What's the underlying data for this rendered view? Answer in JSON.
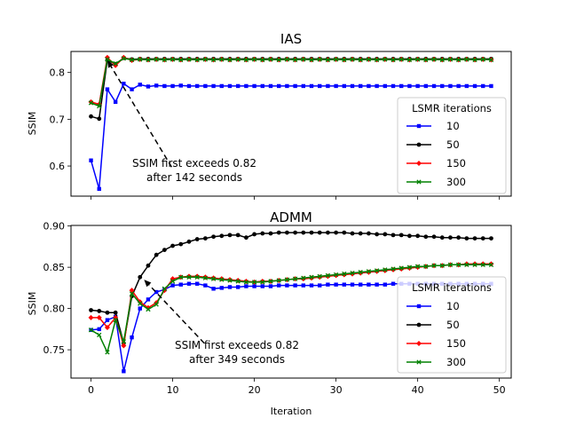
{
  "chart_data": [
    {
      "type": "line",
      "title": "IAS",
      "xlabel": "",
      "ylabel": "SSIM",
      "xlim": [
        -2.45,
        51.45
      ],
      "ylim": [
        0.5356,
        0.8449
      ],
      "x_ticks": [
        0,
        10,
        20,
        30,
        40,
        50
      ],
      "y_ticks": [
        0.6,
        0.7,
        0.8
      ],
      "y_tick_labels": [
        "0.6",
        "0.7",
        "0.8"
      ],
      "x_tick_labels_shown": false,
      "legend": {
        "title": "LSMR iterations",
        "position": "center-right"
      },
      "annotation": {
        "text_lines": [
          "SSIM first exceeds 0.82",
          "after 142 seconds"
        ],
        "arrow_to": [
          2,
          0.826
        ],
        "text_at": [
          14,
          0.575
        ]
      },
      "series": [
        {
          "name": "10",
          "color": "#0000ff",
          "marker": "square",
          "values": [
            0.612,
            0.551,
            0.764,
            0.737,
            0.776,
            0.764,
            0.774,
            0.77,
            0.772,
            0.771,
            0.771,
            0.772,
            0.771,
            0.771,
            0.771,
            0.771,
            0.771,
            0.771,
            0.771,
            0.771,
            0.771,
            0.771,
            0.771,
            0.771,
            0.771,
            0.771,
            0.771,
            0.771,
            0.771,
            0.771,
            0.771,
            0.771,
            0.771,
            0.771,
            0.771,
            0.771,
            0.771,
            0.771,
            0.771,
            0.771,
            0.771,
            0.771,
            0.771,
            0.771,
            0.771,
            0.771,
            0.771,
            0.771,
            0.771,
            0.771
          ]
        },
        {
          "name": "50",
          "color": "#000000",
          "marker": "circle",
          "values": [
            0.706,
            0.701,
            0.826,
            0.818,
            0.831,
            0.828,
            0.829,
            0.829,
            0.829,
            0.829,
            0.829,
            0.829,
            0.829,
            0.829,
            0.829,
            0.829,
            0.829,
            0.829,
            0.829,
            0.829,
            0.829,
            0.829,
            0.829,
            0.829,
            0.829,
            0.829,
            0.829,
            0.829,
            0.829,
            0.829,
            0.829,
            0.829,
            0.829,
            0.829,
            0.829,
            0.829,
            0.829,
            0.829,
            0.829,
            0.829,
            0.829,
            0.829,
            0.829,
            0.829,
            0.829,
            0.829,
            0.829,
            0.829,
            0.829,
            0.829
          ]
        },
        {
          "name": "150",
          "color": "#ff0000",
          "marker": "diamond",
          "values": [
            0.737,
            0.732,
            0.832,
            0.815,
            0.832,
            0.826,
            0.828,
            0.827,
            0.828,
            0.827,
            0.828,
            0.827,
            0.828,
            0.827,
            0.828,
            0.827,
            0.828,
            0.827,
            0.828,
            0.827,
            0.828,
            0.827,
            0.828,
            0.827,
            0.828,
            0.827,
            0.828,
            0.827,
            0.828,
            0.827,
            0.828,
            0.827,
            0.828,
            0.827,
            0.828,
            0.827,
            0.828,
            0.827,
            0.828,
            0.827,
            0.828,
            0.827,
            0.828,
            0.827,
            0.828,
            0.827,
            0.828,
            0.827,
            0.828,
            0.827
          ]
        },
        {
          "name": "300",
          "color": "#008000",
          "marker": "x",
          "values": [
            0.735,
            0.728,
            0.828,
            0.819,
            0.83,
            0.827,
            0.828,
            0.827,
            0.828,
            0.827,
            0.828,
            0.827,
            0.828,
            0.827,
            0.828,
            0.827,
            0.828,
            0.827,
            0.828,
            0.827,
            0.828,
            0.827,
            0.828,
            0.827,
            0.828,
            0.827,
            0.828,
            0.827,
            0.828,
            0.827,
            0.828,
            0.827,
            0.828,
            0.827,
            0.828,
            0.827,
            0.828,
            0.827,
            0.828,
            0.827,
            0.828,
            0.827,
            0.828,
            0.827,
            0.828,
            0.827,
            0.828,
            0.827,
            0.828,
            0.827
          ]
        }
      ]
    },
    {
      "type": "line",
      "title": "ADMM",
      "xlabel": "Iteration",
      "ylabel": "SSIM",
      "xlim": [
        -2.45,
        51.45
      ],
      "ylim": [
        0.7157,
        0.9007
      ],
      "x_ticks": [
        0,
        10,
        20,
        30,
        40,
        50
      ],
      "y_ticks": [
        0.75,
        0.8,
        0.85,
        0.9
      ],
      "y_tick_labels": [
        "0.75",
        "0.80",
        "0.85",
        "0.90"
      ],
      "x_tick_labels_shown": true,
      "legend": {
        "title": "LSMR iterations",
        "position": "center-right"
      },
      "annotation": {
        "text_lines": [
          "SSIM first exceeds 0.82",
          "after 349 seconds"
        ],
        "arrow_to": [
          6.5,
          0.835
        ],
        "text_at": [
          18,
          0.745
        ]
      },
      "series": [
        {
          "name": "10",
          "color": "#0000ff",
          "marker": "square",
          "values": [
            0.774,
            0.775,
            0.786,
            0.79,
            0.724,
            0.765,
            0.8,
            0.811,
            0.82,
            0.823,
            0.828,
            0.829,
            0.83,
            0.83,
            0.828,
            0.824,
            0.825,
            0.826,
            0.826,
            0.827,
            0.827,
            0.827,
            0.827,
            0.828,
            0.828,
            0.828,
            0.828,
            0.828,
            0.828,
            0.829,
            0.829,
            0.829,
            0.829,
            0.829,
            0.829,
            0.829,
            0.829,
            0.83,
            0.83,
            0.83,
            0.83,
            0.83,
            0.83,
            0.83,
            0.83,
            0.83,
            0.83,
            0.83,
            0.83,
            0.83
          ]
        },
        {
          "name": "50",
          "color": "#000000",
          "marker": "circle",
          "values": [
            0.798,
            0.797,
            0.795,
            0.795,
            0.758,
            0.815,
            0.838,
            0.852,
            0.865,
            0.871,
            0.876,
            0.878,
            0.881,
            0.884,
            0.885,
            0.887,
            0.888,
            0.889,
            0.889,
            0.886,
            0.89,
            0.891,
            0.891,
            0.892,
            0.892,
            0.892,
            0.892,
            0.892,
            0.892,
            0.892,
            0.892,
            0.892,
            0.891,
            0.891,
            0.891,
            0.89,
            0.89,
            0.889,
            0.889,
            0.888,
            0.888,
            0.887,
            0.887,
            0.886,
            0.886,
            0.886,
            0.885,
            0.885,
            0.885,
            0.885
          ]
        },
        {
          "name": "150",
          "color": "#ff0000",
          "marker": "diamond",
          "values": [
            0.789,
            0.789,
            0.777,
            0.789,
            0.755,
            0.822,
            0.808,
            0.801,
            0.807,
            0.822,
            0.836,
            0.838,
            0.839,
            0.839,
            0.838,
            0.837,
            0.836,
            0.835,
            0.834,
            0.833,
            0.832,
            0.833,
            0.833,
            0.834,
            0.835,
            0.836,
            0.836,
            0.837,
            0.838,
            0.839,
            0.84,
            0.841,
            0.842,
            0.843,
            0.844,
            0.845,
            0.846,
            0.847,
            0.848,
            0.849,
            0.85,
            0.851,
            0.852,
            0.852,
            0.853,
            0.853,
            0.854,
            0.854,
            0.854,
            0.854
          ]
        },
        {
          "name": "300",
          "color": "#008000",
          "marker": "x",
          "values": [
            0.774,
            0.768,
            0.747,
            0.786,
            0.76,
            0.818,
            0.806,
            0.799,
            0.805,
            0.824,
            0.833,
            0.838,
            0.838,
            0.838,
            0.837,
            0.836,
            0.835,
            0.834,
            0.833,
            0.832,
            0.832,
            0.832,
            0.833,
            0.834,
            0.835,
            0.836,
            0.837,
            0.838,
            0.839,
            0.84,
            0.841,
            0.842,
            0.843,
            0.844,
            0.845,
            0.846,
            0.847,
            0.848,
            0.849,
            0.85,
            0.851,
            0.851,
            0.852,
            0.852,
            0.853,
            0.853,
            0.853,
            0.853,
            0.853,
            0.853
          ]
        }
      ]
    }
  ]
}
